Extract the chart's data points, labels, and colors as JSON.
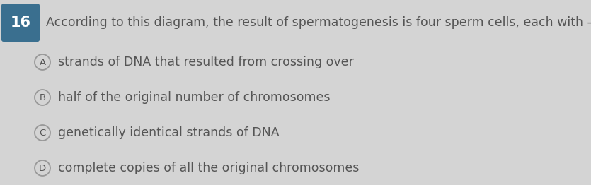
{
  "question_number": "16",
  "question_number_bg": "#3a6f8f",
  "question_text": "According to this diagram, the result of spermatogenesis is four sperm cells, each with -",
  "options": [
    {
      "label": "A",
      "text": "strands of DNA that resulted from crossing over"
    },
    {
      "label": "B",
      "text": "half of the original number of chromosomes"
    },
    {
      "label": "C",
      "text": "genetically identical strands of DNA"
    },
    {
      "label": "D",
      "text": "complete copies of all the original chromosomes"
    }
  ],
  "bg_color": "#d4d4d4",
  "text_color": "#555555",
  "circle_edge_color": "#999999",
  "question_fontsize": 12.5,
  "option_fontsize": 12.5,
  "q_num_fontsize": 15,
  "fig_width": 8.35,
  "fig_height": 2.62,
  "dpi": 100
}
